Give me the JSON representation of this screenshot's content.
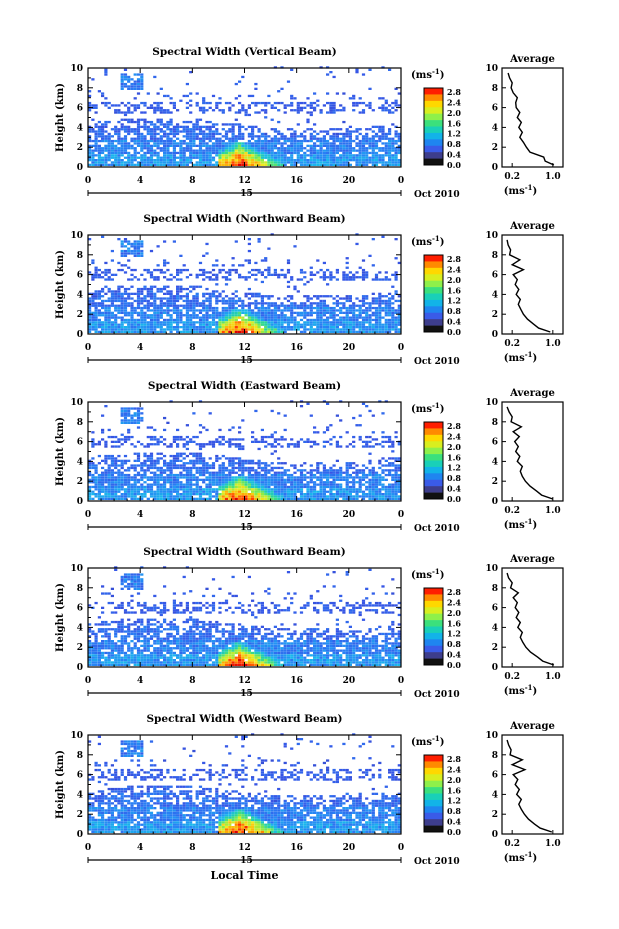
{
  "figure": {
    "xlabel": "Local Time",
    "date_label": "Oct 2010",
    "day_label": "15",
    "colorbar_unit": "(ms",
    "colorbar_unit_exp": "-1",
    "colorbar_unit_close": ")",
    "colorbar_ticks": [
      "2.8",
      "2.4",
      "2.0",
      "1.6",
      "1.2",
      "0.8",
      "0.4",
      "0.0"
    ],
    "colorbar_colors": [
      "#ff1e00",
      "#ff8a00",
      "#ffd800",
      "#d9ee1f",
      "#8ef04a",
      "#3be07c",
      "#19d0b8",
      "#12b3e8",
      "#1f85f0",
      "#3a5be8",
      "#3d3d8c",
      "#111111"
    ],
    "avg_title": "Average",
    "avg_xlabel": "(ms",
    "avg_xlabel_exp": "-1",
    "avg_xlabel_close": ")",
    "avg_xticks": [
      "0.2",
      "1.0"
    ],
    "ylabel": "Height (km)",
    "yticks": [
      "0",
      "2",
      "4",
      "6",
      "8",
      "10"
    ],
    "xticks": [
      "0",
      "4",
      "8",
      "12",
      "16",
      "20",
      "0"
    ]
  },
  "chart_data": [
    {
      "type": "heatmap",
      "title": "Spectral Width (Vertical Beam)",
      "xlabel": "Local Time",
      "ylabel": "Height (km)",
      "xlim": [
        0,
        24
      ],
      "ylim": [
        0,
        10
      ],
      "clim": [
        0,
        3.0
      ],
      "colorbar_label": "(ms-1)",
      "average_profile": {
        "xlabel": "(ms-1)",
        "xlim": [
          0,
          1.2
        ],
        "height": [
          0.2,
          0.6,
          1.0,
          1.5,
          2.0,
          2.5,
          3.0,
          3.5,
          4.0,
          4.5,
          5.0,
          5.5,
          6.0,
          6.5,
          7.0,
          7.5,
          8.0,
          8.5,
          9.0,
          9.5
        ],
        "width": [
          1.02,
          0.85,
          0.82,
          0.55,
          0.48,
          0.42,
          0.35,
          0.4,
          0.33,
          0.38,
          0.3,
          0.35,
          0.28,
          0.27,
          0.3,
          0.22,
          0.18,
          0.2,
          0.15,
          0.12
        ]
      }
    },
    {
      "type": "heatmap",
      "title": "Spectral Width (Northward Beam)",
      "xlabel": "Local Time",
      "ylabel": "Height (km)",
      "xlim": [
        0,
        24
      ],
      "ylim": [
        0,
        10
      ],
      "clim": [
        0,
        3.0
      ],
      "colorbar_label": "(ms-1)",
      "average_profile": {
        "xlabel": "(ms-1)",
        "xlim": [
          0,
          1.2
        ],
        "height": [
          0.2,
          0.6,
          1.0,
          1.5,
          2.0,
          2.5,
          3.0,
          3.5,
          4.0,
          4.5,
          5.0,
          5.5,
          6.0,
          6.5,
          7.0,
          7.5,
          8.0,
          8.5,
          9.0,
          9.5
        ],
        "width": [
          0.95,
          0.72,
          0.62,
          0.5,
          0.42,
          0.37,
          0.32,
          0.36,
          0.28,
          0.33,
          0.26,
          0.3,
          0.22,
          0.42,
          0.2,
          0.35,
          0.15,
          0.17,
          0.12,
          0.1
        ]
      }
    },
    {
      "type": "heatmap",
      "title": "Spectral Width (Eastward Beam)",
      "xlabel": "Local Time",
      "ylabel": "Height (km)",
      "xlim": [
        0,
        24
      ],
      "ylim": [
        0,
        10
      ],
      "clim": [
        0,
        3.0
      ],
      "colorbar_label": "(ms-1)",
      "average_profile": {
        "xlabel": "(ms-1)",
        "xlim": [
          0,
          1.2
        ],
        "height": [
          0.2,
          0.6,
          1.0,
          1.5,
          2.0,
          2.5,
          3.0,
          3.5,
          4.0,
          4.5,
          5.0,
          5.5,
          6.0,
          6.5,
          7.0,
          7.5,
          8.0,
          8.5,
          9.0,
          9.5
        ],
        "width": [
          1.0,
          0.78,
          0.68,
          0.55,
          0.46,
          0.4,
          0.36,
          0.4,
          0.3,
          0.35,
          0.27,
          0.32,
          0.25,
          0.34,
          0.22,
          0.38,
          0.18,
          0.2,
          0.14,
          0.1
        ]
      }
    },
    {
      "type": "heatmap",
      "title": "Spectral Width (Southward Beam)",
      "xlabel": "Local Time",
      "ylabel": "Height (km)",
      "xlim": [
        0,
        24
      ],
      "ylim": [
        0,
        10
      ],
      "clim": [
        0,
        3.0
      ],
      "colorbar_label": "(ms-1)",
      "average_profile": {
        "xlabel": "(ms-1)",
        "xlim": [
          0,
          1.2
        ],
        "height": [
          0.2,
          0.6,
          1.0,
          1.5,
          2.0,
          2.5,
          3.0,
          3.5,
          4.0,
          4.5,
          5.0,
          5.5,
          6.0,
          6.5,
          7.0,
          7.5,
          8.0,
          8.5,
          9.0,
          9.5
        ],
        "width": [
          1.02,
          0.8,
          0.7,
          0.56,
          0.47,
          0.41,
          0.36,
          0.4,
          0.31,
          0.36,
          0.28,
          0.33,
          0.26,
          0.3,
          0.22,
          0.32,
          0.17,
          0.2,
          0.13,
          0.1
        ]
      }
    },
    {
      "type": "heatmap",
      "title": "Spectral Width (Westward Beam)",
      "xlabel": "Local Time",
      "ylabel": "Height (km)",
      "xlim": [
        0,
        24
      ],
      "ylim": [
        0,
        10
      ],
      "clim": [
        0,
        3.0
      ],
      "colorbar_label": "(ms-1)",
      "average_profile": {
        "xlabel": "(ms-1)",
        "xlim": [
          0,
          1.2
        ],
        "height": [
          0.2,
          0.6,
          1.0,
          1.5,
          2.0,
          2.5,
          3.0,
          3.5,
          4.0,
          4.5,
          5.0,
          5.5,
          6.0,
          6.5,
          7.0,
          7.5,
          8.0,
          8.5,
          9.0,
          9.5
        ],
        "width": [
          0.98,
          0.75,
          0.64,
          0.52,
          0.44,
          0.38,
          0.33,
          0.38,
          0.29,
          0.34,
          0.26,
          0.31,
          0.22,
          0.45,
          0.2,
          0.4,
          0.16,
          0.18,
          0.13,
          0.1
        ]
      }
    }
  ]
}
